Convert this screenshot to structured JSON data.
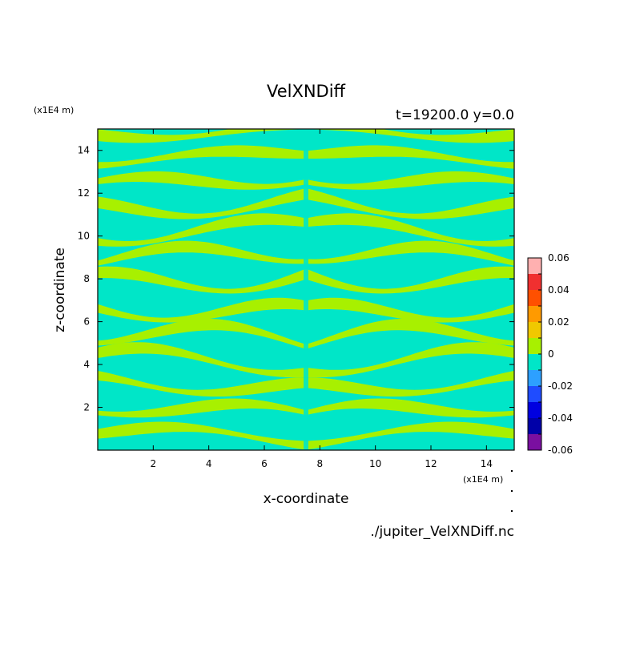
{
  "chart_data": {
    "type": "heatmap",
    "title": "VelXNDiff",
    "subtitle": "t=19200.0 y=0.0",
    "xlabel": "x-coordinate",
    "ylabel": "z-coordinate",
    "x_unit": "(x1E4 m)",
    "y_unit": "(x1E4 m)",
    "xlim": [
      0.0,
      15.0
    ],
    "ylim": [
      0.0,
      15.0
    ],
    "x_ticks": [
      2,
      4,
      6,
      8,
      10,
      12,
      14
    ],
    "y_ticks": [
      2,
      4,
      6,
      8,
      10,
      12,
      14
    ],
    "x_tick_labels": [
      "2",
      "4",
      "6",
      "8",
      "10",
      "12",
      "14"
    ],
    "y_tick_labels": [
      "2",
      "4",
      "6",
      "8",
      "10",
      "12",
      "14"
    ],
    "colorbar": {
      "levels": [
        -0.06,
        -0.05,
        -0.04,
        -0.03,
        -0.02,
        -0.01,
        0.0,
        0.01,
        0.02,
        0.03,
        0.04,
        0.05,
        0.06
      ],
      "colors": [
        "#7a0fa0",
        "#0000a8",
        "#0000e0",
        "#1f4cff",
        "#2da0ff",
        "#00e6c8",
        "#a8f000",
        "#f0c800",
        "#ff9a00",
        "#ff5000",
        "#f03030",
        "#ffb0b0"
      ],
      "tick_values": [
        -0.06,
        -0.04,
        -0.02,
        0,
        0.02,
        0.04,
        0.06
      ],
      "tick_labels": [
        "-0.06",
        "-0.04",
        "-0.02",
        "0",
        "0.02",
        "0.04",
        "0.06"
      ]
    },
    "field": {
      "description_values": "alternating bands of slightly positive (0 to 0.01) and slightly negative (-0.01 to 0) values, mirrored about x = 7.5",
      "positive_color": "#a8f000",
      "negative_color": "#00e6c8",
      "symmetry_axis_x": 7.5
    },
    "source": "./jupiter_VelXNDiff.nc",
    "grid": false
  }
}
